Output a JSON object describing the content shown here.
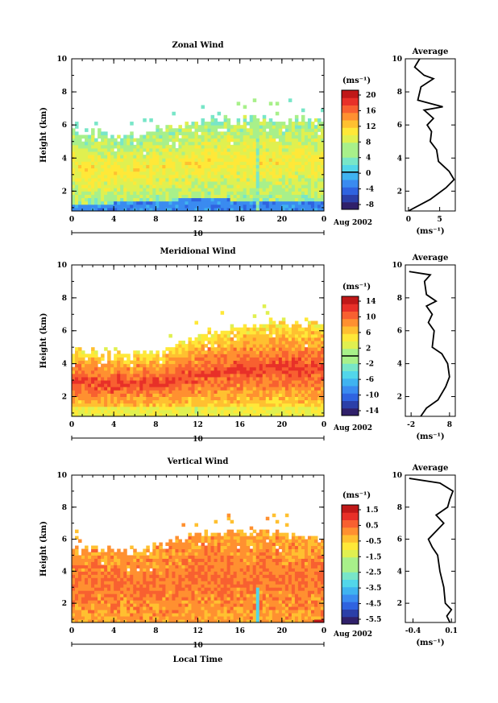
{
  "colors": {
    "scale": [
      "#30206a",
      "#2b3fa8",
      "#2f63e0",
      "#3a8bf0",
      "#3fb3f0",
      "#52d6ea",
      "#78e6c8",
      "#a8f08a",
      "#e0f050",
      "#ffe838",
      "#ffc030",
      "#ff9030",
      "#f86030",
      "#e83028",
      "#c01818"
    ]
  },
  "chart_data": [
    {
      "type": "heatmap",
      "title": "Zonal Wind",
      "ylabel": "Height (km)",
      "xlabel": "",
      "x_ticks": [
        "0",
        "4",
        "8",
        "12",
        "16",
        "20",
        "0"
      ],
      "date_label": "10",
      "date_suffix": "Aug 2002",
      "y_ticks": [
        "2",
        "4",
        "6",
        "8",
        "10"
      ],
      "ylim": [
        0.8,
        10
      ],
      "xlim": [
        0,
        24
      ],
      "colorbar": {
        "unit": "(ms⁻¹)",
        "labels": [
          "20",
          "16",
          "12",
          "8",
          "4",
          "0",
          "-4",
          "-8"
        ],
        "range": [
          -10,
          22
        ],
        "zero_line": 0
      },
      "field": {
        "top_profile": [
          [
            0,
            5.6
          ],
          [
            2,
            5.5
          ],
          [
            4,
            5.3
          ],
          [
            6,
            5.3
          ],
          [
            8,
            5.6
          ],
          [
            10,
            6.0
          ],
          [
            12,
            6.2
          ],
          [
            14,
            6.3
          ],
          [
            16,
            6.3
          ],
          [
            18,
            6.4
          ],
          [
            20,
            6.3
          ],
          [
            22,
            6.4
          ],
          [
            24,
            6.4
          ]
        ],
        "low_profile": [
          [
            0,
            1.0
          ],
          [
            4,
            1.0
          ],
          [
            6,
            1.2
          ],
          [
            10,
            1.2
          ],
          [
            14,
            1.3
          ],
          [
            17.6,
            1.0
          ],
          [
            18,
            1.1
          ],
          [
            22,
            1.2
          ],
          [
            24,
            1.0
          ]
        ],
        "core_value": 10,
        "base_value": 5
      },
      "average": {
        "title": "Average",
        "unit": "(ms⁻¹)",
        "x_ticks": [
          "0",
          "5"
        ],
        "xlim": [
          -0.5,
          7.5
        ],
        "y_ticks": [
          "2",
          "4",
          "6",
          "8",
          "10"
        ],
        "profile": [
          [
            0.0,
            0.8
          ],
          [
            3.5,
            1.5
          ],
          [
            6.0,
            2.2
          ],
          [
            7.3,
            2.7
          ],
          [
            6.5,
            3.2
          ],
          [
            4.8,
            3.8
          ],
          [
            4.5,
            4.5
          ],
          [
            3.5,
            5.0
          ],
          [
            3.7,
            5.6
          ],
          [
            3.0,
            6.0
          ],
          [
            4.0,
            6.4
          ],
          [
            2.5,
            6.9
          ],
          [
            5.5,
            7.1
          ],
          [
            1.5,
            7.5
          ],
          [
            2.0,
            8.3
          ],
          [
            4.0,
            8.8
          ],
          [
            2.5,
            9.0
          ],
          [
            1.0,
            9.5
          ],
          [
            1.8,
            10.0
          ]
        ]
      }
    },
    {
      "type": "heatmap",
      "title": "Meridional Wind",
      "ylabel": "Height (km)",
      "xlabel": "",
      "x_ticks": [
        "0",
        "4",
        "8",
        "12",
        "16",
        "20",
        "0"
      ],
      "date_label": "10",
      "date_suffix": "Aug 2002",
      "y_ticks": [
        "2",
        "4",
        "6",
        "8",
        "10"
      ],
      "ylim": [
        0.8,
        10
      ],
      "xlim": [
        0,
        24
      ],
      "colorbar": {
        "unit": "(ms⁻¹)",
        "labels": [
          "14",
          "10",
          "6",
          "2",
          "-2",
          "-6",
          "-10",
          "-14"
        ],
        "range": [
          -16,
          16
        ],
        "zero_line": 0
      },
      "field": {
        "top_profile": [
          [
            0,
            4.8
          ],
          [
            2,
            4.7
          ],
          [
            4,
            4.5
          ],
          [
            6,
            4.5
          ],
          [
            8,
            4.6
          ],
          [
            10,
            5.0
          ],
          [
            12,
            5.8
          ],
          [
            14,
            6.1
          ],
          [
            16,
            6.2
          ],
          [
            18,
            6.3
          ],
          [
            20,
            6.5
          ],
          [
            22,
            6.4
          ],
          [
            24,
            6.4
          ]
        ],
        "low_profile": [
          [
            0,
            1.0
          ],
          [
            24,
            1.0
          ]
        ],
        "core_value": 12,
        "base_value": 3
      },
      "average": {
        "title": "Average",
        "unit": "(ms⁻¹)",
        "x_ticks": [
          "-2",
          "8"
        ],
        "xlim": [
          -3.5,
          9.5
        ],
        "y_ticks": [
          "2",
          "4",
          "6",
          "8",
          "10"
        ],
        "profile": [
          [
            0.5,
            0.8
          ],
          [
            2.0,
            1.3
          ],
          [
            5.0,
            1.8
          ],
          [
            7.0,
            2.6
          ],
          [
            8.0,
            3.2
          ],
          [
            7.5,
            4.0
          ],
          [
            6.0,
            4.6
          ],
          [
            3.5,
            5.0
          ],
          [
            4.0,
            6.0
          ],
          [
            2.5,
            6.5
          ],
          [
            3.5,
            7.0
          ],
          [
            2.0,
            7.5
          ],
          [
            4.5,
            7.8
          ],
          [
            2.0,
            8.2
          ],
          [
            1.5,
            9.0
          ],
          [
            3.0,
            9.4
          ],
          [
            -2.5,
            9.6
          ]
        ]
      }
    },
    {
      "type": "heatmap",
      "title": "Vertical Wind",
      "ylabel": "Height (km)",
      "xlabel": "Local Time",
      "x_ticks": [
        "0",
        "4",
        "8",
        "12",
        "16",
        "20",
        "0"
      ],
      "date_label": "10",
      "date_suffix": "Aug 2002",
      "y_ticks": [
        "2",
        "4",
        "6",
        "8",
        "10"
      ],
      "ylim": [
        0.8,
        10
      ],
      "xlim": [
        0,
        24
      ],
      "colorbar": {
        "unit": "(ms⁻¹)",
        "labels": [
          "1.5",
          "0.5",
          "-0.5",
          "-1.5",
          "-2.5",
          "-3.5",
          "-4.5",
          "-5.5"
        ],
        "range": [
          -6,
          2.2
        ],
        "zero_line": null
      },
      "field": {
        "top_profile": [
          [
            0,
            5.5
          ],
          [
            2,
            5.5
          ],
          [
            4,
            5.2
          ],
          [
            6,
            5.2
          ],
          [
            8,
            5.5
          ],
          [
            10,
            6.0
          ],
          [
            12,
            6.3
          ],
          [
            14,
            6.5
          ],
          [
            16,
            6.5
          ],
          [
            18,
            6.4
          ],
          [
            20,
            6.3
          ],
          [
            22,
            6.2
          ],
          [
            24,
            6.2
          ]
        ],
        "low_profile": [
          [
            0,
            0.9
          ],
          [
            24,
            0.9
          ]
        ],
        "core_value": 0.6,
        "base_value": 0.0
      },
      "average": {
        "title": "Average",
        "unit": "(ms⁻¹)",
        "x_ticks": [
          "-0.4",
          "0.1"
        ],
        "xlim": [
          -0.5,
          0.15
        ],
        "y_ticks": [
          "2",
          "4",
          "6",
          "8",
          "10"
        ],
        "profile": [
          [
            0.08,
            0.8
          ],
          [
            0.04,
            1.2
          ],
          [
            0.1,
            1.6
          ],
          [
            0.02,
            2.0
          ],
          [
            0.0,
            3.0
          ],
          [
            -0.05,
            4.0
          ],
          [
            -0.08,
            5.0
          ],
          [
            -0.15,
            5.5
          ],
          [
            -0.2,
            6.0
          ],
          [
            -0.1,
            6.5
          ],
          [
            0.0,
            7.0
          ],
          [
            -0.1,
            7.5
          ],
          [
            0.05,
            8.0
          ],
          [
            0.08,
            8.5
          ],
          [
            0.12,
            9.0
          ],
          [
            -0.05,
            9.5
          ],
          [
            -0.45,
            9.8
          ]
        ]
      }
    }
  ]
}
